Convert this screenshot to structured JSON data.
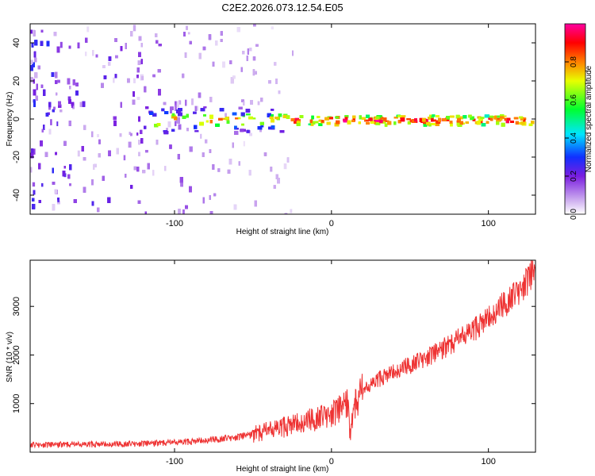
{
  "title": "C2E2.2026.073.12.54.E05",
  "chart_data": [
    {
      "type": "heatmap",
      "title": "C2E2.2026.073.12.54.E05",
      "xlabel": "Height of straight line (km)",
      "ylabel": "Frequency (Hz)",
      "xlim": [
        -192,
        130
      ],
      "ylim": [
        -50,
        50
      ],
      "xticks": [
        -100,
        0,
        100
      ],
      "xtick_labels": [
        "-100",
        "0",
        "100"
      ],
      "yticks": [
        -40,
        -20,
        0,
        20,
        40
      ],
      "ytick_labels": [
        "-40",
        "-20",
        "0",
        "20",
        "40"
      ],
      "colorbar": {
        "label": "Normalized spectral amplitude",
        "range": [
          0,
          1
        ],
        "ticks": [
          0.0,
          0.2,
          0.4,
          0.6,
          0.8
        ],
        "tick_labels": [
          "0.0",
          "0.2",
          "0.4",
          "0.6",
          "0.8"
        ],
        "colormap": [
          "#ffffff",
          "#c9a6ee",
          "#7a1ee0",
          "#1030ff",
          "#00e6ff",
          "#00ff30",
          "#e8ff00",
          "#ff8000",
          "#ff0000",
          "#ff00a0"
        ]
      },
      "description_series": [
        {
          "name": "noise band",
          "x_range": [
            -192,
            -50
          ],
          "y_range": [
            -50,
            50
          ],
          "amplitude": 0.1
        },
        {
          "name": "signal band",
          "x_range": [
            -120,
            130
          ],
          "y_center": 0,
          "y_halfwidth_Hz": 4,
          "peak_amplitude": 0.95
        }
      ]
    },
    {
      "type": "line",
      "xlabel": "Height of straight line (km)",
      "ylabel": "SNR (10 * v/v)",
      "xlim": [
        -192,
        130
      ],
      "ylim": [
        0,
        3950
      ],
      "xticks": [
        -100,
        0,
        100
      ],
      "xtick_labels": [
        "-100",
        "0",
        "100"
      ],
      "yticks": [
        1000,
        2000,
        3000
      ],
      "ytick_labels": [
        "1000",
        "2000",
        "3000"
      ],
      "color": "#ee3333",
      "series": [
        {
          "name": "SNR",
          "x": [
            -192,
            -170,
            -150,
            -130,
            -110,
            -90,
            -75,
            -60,
            -50,
            -40,
            -30,
            -20,
            -10,
            0,
            5,
            8,
            10,
            12,
            15,
            20,
            30,
            40,
            50,
            60,
            70,
            80,
            90,
            100,
            110,
            120,
            130
          ],
          "y": [
            150,
            155,
            160,
            170,
            185,
            215,
            260,
            310,
            370,
            440,
            520,
            600,
            700,
            800,
            880,
            950,
            1050,
            350,
            1000,
            1250,
            1500,
            1650,
            1800,
            1950,
            2100,
            2300,
            2500,
            2750,
            3050,
            3350,
            3750
          ]
        }
      ]
    }
  ]
}
